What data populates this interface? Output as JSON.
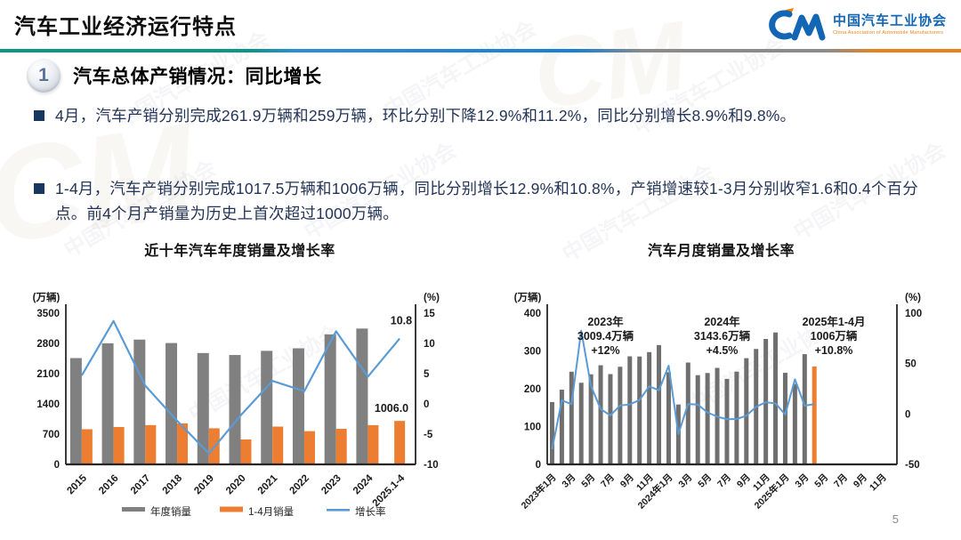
{
  "page": {
    "page_number": "5",
    "watermark": "中国汽车工业协会"
  },
  "header": {
    "title": "汽车工业经济运行特点",
    "logo": {
      "monogram": "CM",
      "org_cn": "中国汽车工业协会",
      "org_en": "China Association of Automobile Manufacturers"
    }
  },
  "section": {
    "number": "1",
    "title": "汽车总体产销情况：同比增长"
  },
  "bullets": [
    {
      "text": "4月，汽车产销分别完成261.9万辆和259万辆，环比分别下降12.9%和11.2%，同比分别增长8.9%和9.8%。"
    },
    {
      "text": "1-4月，汽车产销分别完成1017.5万辆和1006万辆，同比分别增长12.9%和10.8%，产销增速较1-3月分别收窄1.6和0.4个百分点。前4个月产销量为历史上首次超过1000万辆。"
    }
  ],
  "colors": {
    "bar_gray": "#808080",
    "bar_gray_monthly": "#6f6f6f",
    "bar_orange": "#ED7D31",
    "line_blue": "#5B9BD5",
    "bullet_navy": "#17375E",
    "logo_blue": "#1266b3",
    "logo_orange": "#ef8200",
    "divider_teal": "#0f9488",
    "divider_blue": "#1b7fd4",
    "divider_gray": "#8b8b8b",
    "divider_orange": "#e8821e"
  },
  "chart_data": [
    {
      "type": "bar",
      "subtype": "bar+line-combo",
      "title": "近十年汽车年度销量及增长率",
      "y1_label": "(万辆)",
      "y2_label": "(%)",
      "categories": [
        "2015",
        "2016",
        "2017",
        "2018",
        "2019",
        "2020",
        "2021",
        "2022",
        "2023",
        "2024",
        "2025.1-4"
      ],
      "series": [
        {
          "name": "年度销量",
          "type": "bar",
          "axis": "y1",
          "color": "#808080",
          "values": [
            2459.8,
            2802.8,
            2887.9,
            2808.1,
            2576.9,
            2531.1,
            2627.5,
            2686.4,
            3009.4,
            3143.6,
            null
          ]
        },
        {
          "name": "1-4月销量",
          "type": "bar",
          "axis": "y1",
          "color": "#ED7D31",
          "values": [
            814,
            865,
            909,
            950,
            835,
            576,
            875,
            769,
            823,
            908,
            1006
          ]
        },
        {
          "name": "增长率",
          "type": "line",
          "axis": "y2",
          "color": "#5B9BD5",
          "values": [
            4.7,
            13.7,
            3.0,
            -2.8,
            -8.2,
            -1.9,
            3.8,
            2.1,
            12.0,
            4.5,
            10.8
          ]
        }
      ],
      "y1_range": [
        0,
        3500
      ],
      "y1_ticks": [
        0,
        700,
        1400,
        2100,
        2800,
        3500
      ],
      "y2_range": [
        -10,
        15
      ],
      "y2_ticks": [
        -10,
        -5,
        0,
        5,
        10,
        15
      ],
      "annotations": {
        "line_end_label": "10.8",
        "bar_end_label": "1006.0"
      },
      "legend": [
        "年度销量",
        "1-4月销量",
        "增长率"
      ],
      "legend_position": "bottom",
      "grid": false
    },
    {
      "type": "bar",
      "subtype": "bar+line-combo",
      "title": "汽车月度销量及增长率",
      "y1_label": "(万辆)",
      "y2_label": "(%)",
      "n_slots": 36,
      "x_tick_labels": [
        "2023年1月",
        "3月",
        "5月",
        "7月",
        "9月",
        "11月",
        "2024年1月",
        "3月",
        "5月",
        "7月",
        "9月",
        "11月",
        "2025年1月",
        "3月",
        "5月",
        "7月",
        "9月",
        "11月"
      ],
      "bar_color": "#6f6f6f",
      "last_bar_color": "#ED7D31",
      "line_color": "#5B9BD5",
      "sales_monthly": [
        164.9,
        197.6,
        245.1,
        215.9,
        238.2,
        262.2,
        238.8,
        258.2,
        285.8,
        285.3,
        297.0,
        315.6,
        243.9,
        158.4,
        269.4,
        235.9,
        241.7,
        255.2,
        226.2,
        245.3,
        280.9,
        305.3,
        331.8,
        348.9,
        242.3,
        212.9,
        291.5,
        259.0
      ],
      "growth_monthly": [
        -35.0,
        13.5,
        9.7,
        82.7,
        27.9,
        4.8,
        -1.4,
        8.4,
        9.5,
        13.8,
        27.4,
        23.5,
        47.9,
        -19.9,
        9.9,
        9.3,
        1.5,
        -2.7,
        -5.2,
        -5.0,
        -1.7,
        7.0,
        11.7,
        10.5,
        -0.6,
        34.4,
        8.2,
        9.8
      ],
      "y1_range": [
        0,
        400
      ],
      "y1_ticks": [
        0,
        100,
        200,
        300,
        400
      ],
      "y2_range": [
        -50,
        100
      ],
      "y2_ticks": [
        -50,
        0,
        50,
        100
      ],
      "annotations": [
        {
          "x_index": 5.5,
          "lines": [
            "2023年",
            "3009.4万辆",
            "+12%"
          ]
        },
        {
          "x_index": 17.5,
          "lines": [
            "2024年",
            "3143.6万辆",
            "+4.5%"
          ]
        },
        {
          "x_index": 29,
          "lines": [
            "2025年1-4月",
            "1006万辆",
            "+10.8%"
          ]
        }
      ],
      "grid": false
    }
  ]
}
